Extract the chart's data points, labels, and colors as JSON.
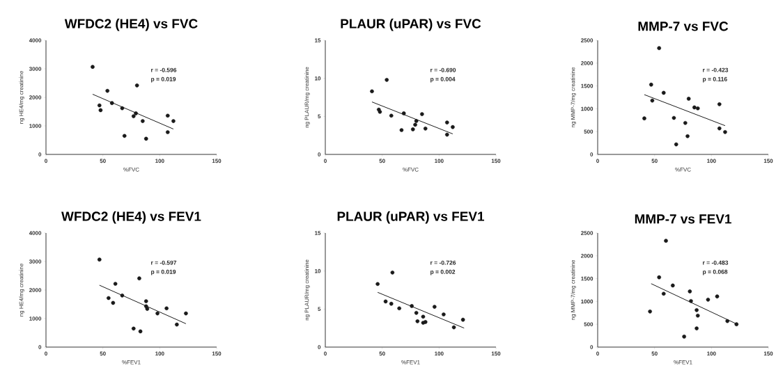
{
  "chart_data": [
    {
      "type": "scatter",
      "title": "WFDC2 (HE4) vs FVC",
      "xlabel": "%FVC",
      "ylabel": "ng HE4/mg creatinine",
      "xlim": [
        0,
        150
      ],
      "ylim": [
        0,
        4000
      ],
      "xticks": [
        0,
        50,
        100,
        150
      ],
      "yticks": [
        0,
        1000,
        2000,
        3000,
        4000
      ],
      "marker": "circle",
      "annotations": [
        "r = -0.596",
        "p = 0.019"
      ],
      "series": [
        {
          "color": "#1a1a1a",
          "x": [
            41,
            47,
            48,
            54,
            58,
            67,
            69,
            77,
            79,
            80,
            85,
            88,
            107,
            107,
            112
          ],
          "values": [
            3070,
            1720,
            1550,
            2230,
            1800,
            1620,
            650,
            1340,
            1440,
            2420,
            1170,
            550,
            1360,
            780,
            1170
          ]
        },
        {
          "type": "line",
          "marker": "none",
          "color": "#1a1a1a",
          "x": [
            41,
            112
          ],
          "values": [
            2110,
            890
          ]
        }
      ]
    },
    {
      "type": "scatter",
      "title": "PLAUR (uPAR) vs FVC",
      "xlabel": "%FVC",
      "ylabel": "ng PLAUR/mg creatinine",
      "xlim": [
        0,
        150
      ],
      "ylim": [
        0,
        15
      ],
      "xticks": [
        0,
        50,
        100,
        150
      ],
      "yticks": [
        0,
        5,
        10,
        15
      ],
      "marker": "circle",
      "annotations": [
        "r = -0.690",
        "p = 0.004"
      ],
      "series": [
        {
          "color": "#1a1a1a",
          "x": [
            41,
            54,
            47,
            48,
            58,
            67,
            69,
            77,
            79,
            80,
            85,
            88,
            107,
            107,
            112
          ],
          "values": [
            8.3,
            9.8,
            5.9,
            5.6,
            5.1,
            3.2,
            5.4,
            3.3,
            3.9,
            4.4,
            5.3,
            3.4,
            4.2,
            2.6,
            3.6
          ]
        },
        {
          "type": "line",
          "marker": "none",
          "color": "#1a1a1a",
          "x": [
            41,
            112
          ],
          "values": [
            6.9,
            2.7
          ]
        }
      ]
    },
    {
      "type": "scatter",
      "title": "MMP-7 vs FVC",
      "xlabel": "%FVC",
      "ylabel": "ng MMP-7/mg creatinine",
      "xlim": [
        0,
        150
      ],
      "ylim": [
        0,
        2500
      ],
      "xticks": [
        0,
        50,
        100,
        150
      ],
      "yticks": [
        0,
        500,
        1000,
        1500,
        2000,
        2500
      ],
      "marker": "circle",
      "annotations": [
        "r = -0.423",
        "p = 0.116"
      ],
      "series": [
        {
          "color": "#1a1a1a",
          "x": [
            41,
            47,
            48,
            54,
            58,
            67,
            69,
            77,
            79,
            80,
            85,
            88,
            107,
            107,
            112
          ],
          "values": [
            790,
            1530,
            1180,
            2330,
            1350,
            800,
            220,
            690,
            400,
            1220,
            1030,
            1010,
            1100,
            570,
            490
          ]
        },
        {
          "type": "line",
          "marker": "none",
          "color": "#1a1a1a",
          "x": [
            41,
            112
          ],
          "values": [
            1310,
            630
          ]
        }
      ]
    },
    {
      "type": "scatter",
      "title": "WFDC2 (HE4) vs FEV1",
      "xlabel": "%FEV1",
      "ylabel": "ng HE4/mg creatinine",
      "xlim": [
        0,
        150
      ],
      "ylim": [
        0,
        4000
      ],
      "xticks": [
        0,
        50,
        100,
        150
      ],
      "yticks": [
        0,
        1000,
        2000,
        3000,
        4000
      ],
      "marker": "circle",
      "annotations": [
        "r = -0.597",
        "p = 0.019"
      ],
      "series": [
        {
          "color": "#1a1a1a",
          "x": [
            47,
            55,
            59,
            61,
            67,
            77,
            82,
            83,
            88,
            88,
            89,
            98,
            106,
            115,
            123
          ],
          "values": [
            3070,
            1720,
            1550,
            2220,
            1810,
            650,
            2410,
            550,
            1610,
            1430,
            1340,
            1180,
            1360,
            790,
            1180
          ]
        },
        {
          "type": "line",
          "marker": "none",
          "color": "#1a1a1a",
          "x": [
            47,
            123
          ],
          "values": [
            2170,
            820
          ]
        }
      ]
    },
    {
      "type": "scatter",
      "title": "PLAUR (uPAR) vs FEV1",
      "xlabel": "%FEV1",
      "ylabel": "ng PLAUR/mg creatinine",
      "xlim": [
        0,
        150
      ],
      "ylim": [
        0,
        15
      ],
      "xticks": [
        0,
        50,
        100,
        150
      ],
      "yticks": [
        0,
        5,
        10,
        15
      ],
      "marker": "circle",
      "annotations": [
        "r = -0.726",
        "p = 0.002"
      ],
      "series": [
        {
          "color": "#1a1a1a",
          "x": [
            46,
            59,
            53,
            58,
            65,
            76,
            80,
            81,
            86,
            86,
            88,
            96,
            104,
            113,
            121
          ],
          "values": [
            8.3,
            9.8,
            6.0,
            5.7,
            5.1,
            5.4,
            4.5,
            3.4,
            4.0,
            3.2,
            3.3,
            5.3,
            4.3,
            2.6,
            3.6
          ]
        },
        {
          "type": "line",
          "marker": "none",
          "color": "#1a1a1a",
          "x": [
            46,
            122
          ],
          "values": [
            7.2,
            2.5
          ]
        }
      ]
    },
    {
      "type": "scatter",
      "title": "MMP-7 vs FEV1",
      "xlabel": "%FEV1",
      "ylabel": "ng MMP-7/mg creatinine",
      "xlim": [
        0,
        150
      ],
      "ylim": [
        0,
        2500
      ],
      "xticks": [
        0,
        50,
        100,
        150
      ],
      "yticks": [
        0,
        500,
        1000,
        1500,
        2000,
        2500
      ],
      "marker": "circle",
      "annotations": [
        "r = -0.483",
        "p = 0.068"
      ],
      "series": [
        {
          "color": "#1a1a1a",
          "x": [
            46,
            54,
            58,
            60,
            66,
            76,
            81,
            82,
            87,
            87,
            88,
            97,
            105,
            114,
            122
          ],
          "values": [
            780,
            1530,
            1170,
            2330,
            1350,
            230,
            1220,
            1010,
            810,
            410,
            690,
            1040,
            1110,
            570,
            500
          ]
        },
        {
          "type": "line",
          "marker": "none",
          "color": "#1a1a1a",
          "x": [
            47,
            121
          ],
          "values": [
            1390,
            520
          ]
        }
      ]
    }
  ]
}
